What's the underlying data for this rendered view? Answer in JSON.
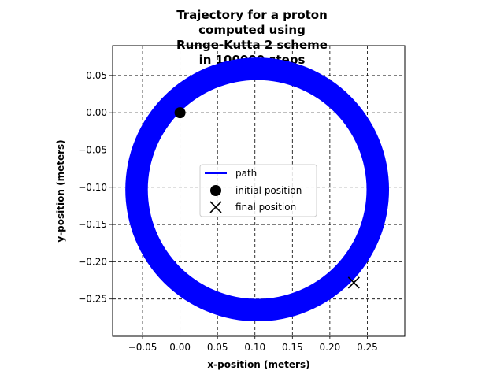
{
  "chart_data": {
    "type": "line",
    "title": [
      "Trajectory for a proton",
      "computed using",
      "Runge-Kutta 2 scheme",
      "in 100000 steps"
    ],
    "xlabel": "x-position (meters)",
    "ylabel": "y-position (meters)",
    "xlim": [
      -0.09,
      0.3
    ],
    "ylim": [
      -0.3,
      0.09
    ],
    "xticks": [
      -0.05,
      0.0,
      0.05,
      0.1,
      0.15,
      0.2,
      0.25
    ],
    "xtick_labels": [
      "−0.05",
      "0.00",
      "0.05",
      "0.10",
      "0.15",
      "0.20",
      "0.25"
    ],
    "yticks": [
      0.05,
      0.0,
      -0.05,
      -0.1,
      -0.15,
      -0.2,
      -0.25
    ],
    "ytick_labels": [
      "0.05",
      "0.00",
      "−0.05",
      "−0.10",
      "−0.15",
      "−0.20",
      "−0.25"
    ],
    "grid": true,
    "legend_position": "center",
    "series": [
      {
        "name": "path",
        "kind": "spiral-ring",
        "color": "#0000ff",
        "center": [
          0.103,
          -0.103
        ],
        "outer_radius": 0.176,
        "inner_radius": 0.146
      }
    ],
    "initial_position": {
      "label": "initial position",
      "x": 0.0,
      "y": 0.0,
      "marker": "circle",
      "color": "#000000"
    },
    "final_position": {
      "label": "final position",
      "x": 0.232,
      "y": -0.228,
      "marker": "x",
      "color": "#000000"
    }
  }
}
